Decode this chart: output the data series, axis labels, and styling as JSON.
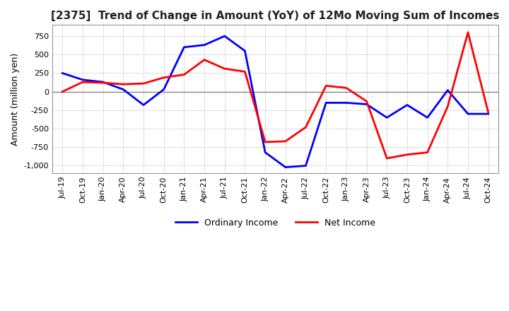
{
  "title": "[2375]  Trend of Change in Amount (YoY) of 12Mo Moving Sum of Incomes",
  "ylabel": "Amount (million yen)",
  "ylim": [
    -1100,
    900
  ],
  "yticks": [
    -1000,
    -750,
    -500,
    -250,
    0,
    250,
    500,
    750
  ],
  "background_color": "#ffffff",
  "grid_color": "#aaaaaa",
  "x_labels": [
    "Jul-19",
    "Oct-19",
    "Jan-20",
    "Apr-20",
    "Jul-20",
    "Oct-20",
    "Jan-21",
    "Apr-21",
    "Jul-21",
    "Oct-21",
    "Jan-22",
    "Apr-22",
    "Jul-22",
    "Oct-22",
    "Jan-23",
    "Apr-23",
    "Jul-23",
    "Oct-23",
    "Jan-24",
    "Apr-24",
    "Jul-24",
    "Oct-24"
  ],
  "ordinary_income": [
    250,
    160,
    130,
    30,
    -180,
    30,
    600,
    630,
    750,
    550,
    -820,
    -1020,
    -1000,
    -150,
    -150,
    -170,
    -350,
    -180,
    -350,
    20,
    -300,
    -300
  ],
  "net_income": [
    0,
    130,
    120,
    100,
    110,
    190,
    230,
    430,
    310,
    270,
    -680,
    -670,
    -480,
    80,
    50,
    -130,
    -900,
    -850,
    -820,
    -200,
    800,
    -280
  ],
  "ordinary_color": "#0000ff",
  "net_color": "#ff0000",
  "line_width": 2.0
}
